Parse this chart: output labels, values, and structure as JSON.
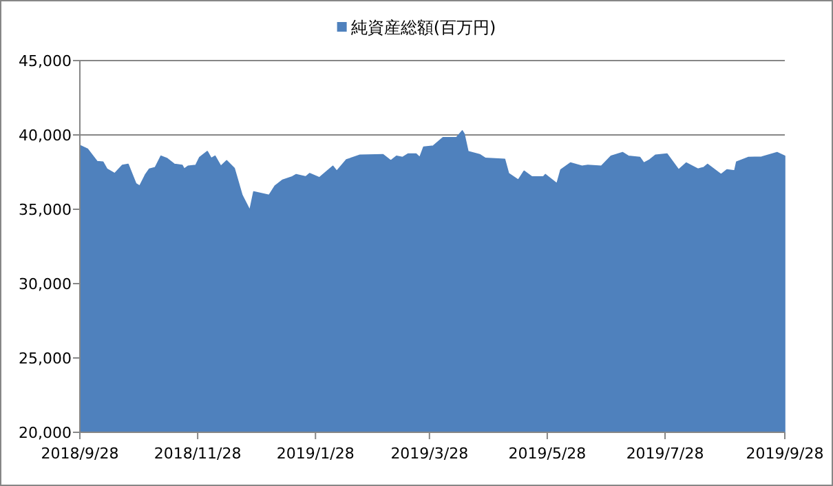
{
  "chart_data": {
    "type": "area",
    "legend": "top",
    "grid": "y",
    "xlim": [
      "2018-09-28",
      "2019-09-28"
    ],
    "xticks": [
      {
        "value": "2018-09-28",
        "label": "2018/9/28"
      },
      {
        "value": "2018-11-28",
        "label": "2018/11/28"
      },
      {
        "value": "2019-01-28",
        "label": "2019/1/28"
      },
      {
        "value": "2019-03-28",
        "label": "2019/3/28"
      },
      {
        "value": "2019-05-28",
        "label": "2019/5/28"
      },
      {
        "value": "2019-07-28",
        "label": "2019/7/28"
      },
      {
        "value": "2019-09-28",
        "label": "2019/9/28"
      }
    ],
    "ylim": [
      20000,
      45000
    ],
    "yticks": [
      {
        "value": 20000,
        "label": "20,000"
      },
      {
        "value": 25000,
        "label": "25,000"
      },
      {
        "value": 30000,
        "label": "30,000"
      },
      {
        "value": 35000,
        "label": "35,000"
      },
      {
        "value": 40000,
        "label": "40,000"
      },
      {
        "value": 45000,
        "label": "45,000"
      }
    ],
    "x": [
      "2018-09-28",
      "2018-10-02",
      "2018-10-07",
      "2018-10-10",
      "2018-10-12",
      "2018-10-16",
      "2018-10-20",
      "2018-10-23",
      "2018-10-27",
      "2018-10-29",
      "2018-11-01",
      "2018-11-03",
      "2018-11-06",
      "2018-11-09",
      "2018-11-12",
      "2018-11-16",
      "2018-11-20",
      "2018-11-21",
      "2018-11-23",
      "2018-11-27",
      "2018-11-29",
      "2018-12-03",
      "2018-12-05",
      "2018-12-07",
      "2018-12-10",
      "2018-12-13",
      "2018-12-17",
      "2018-12-21",
      "2018-12-25",
      "2018-12-27",
      "2019-01-04",
      "2019-01-07",
      "2019-01-11",
      "2019-01-16",
      "2019-01-18",
      "2019-01-23",
      "2019-01-25",
      "2019-01-30",
      "2019-02-06",
      "2019-02-08",
      "2019-02-13",
      "2019-02-20",
      "2019-03-04",
      "2019-03-08",
      "2019-03-11",
      "2019-03-14",
      "2019-03-17",
      "2019-03-21",
      "2019-03-23",
      "2019-03-25",
      "2019-03-30",
      "2019-04-04",
      "2019-04-09",
      "2019-04-11",
      "2019-04-14",
      "2019-04-15",
      "2019-04-17",
      "2019-04-23",
      "2019-04-26",
      "2019-05-06",
      "2019-05-08",
      "2019-05-13",
      "2019-05-16",
      "2019-05-20",
      "2019-05-26",
      "2019-05-27",
      "2019-06-02",
      "2019-06-04",
      "2019-06-09",
      "2019-06-15",
      "2019-06-18",
      "2019-06-25",
      "2019-06-30",
      "2019-07-06",
      "2019-07-09",
      "2019-07-15",
      "2019-07-17",
      "2019-07-20",
      "2019-07-23",
      "2019-07-29",
      "2019-08-04",
      "2019-08-08",
      "2019-08-14",
      "2019-08-17",
      "2019-08-19",
      "2019-08-26",
      "2019-08-29",
      "2019-09-02",
      "2019-09-03",
      "2019-09-09",
      "2019-09-16",
      "2019-09-24",
      "2019-09-28"
    ],
    "series": [
      {
        "name": "純資産総額(百万円)",
        "color": "#4f81bd",
        "values": [
          39290,
          39050,
          38210,
          38180,
          37710,
          37410,
          37960,
          38030,
          36730,
          36570,
          37340,
          37710,
          37810,
          38580,
          38430,
          38030,
          37960,
          37710,
          37900,
          37960,
          38490,
          38890,
          38430,
          38580,
          37900,
          38270,
          37750,
          35950,
          34940,
          36180,
          35950,
          36570,
          36970,
          37190,
          37340,
          37190,
          37410,
          37130,
          37900,
          37570,
          38330,
          38640,
          38680,
          38270,
          38580,
          38490,
          38730,
          38730,
          38490,
          39190,
          39260,
          39820,
          39820,
          39820,
          40280,
          40070,
          38890,
          38680,
          38430,
          38360,
          37410,
          36970,
          37570,
          37190,
          37190,
          37340,
          36730,
          37660,
          38120,
          37900,
          37960,
          37900,
          38580,
          38820,
          38580,
          38490,
          38120,
          38330,
          38640,
          38730,
          37660,
          38120,
          37710,
          37810,
          38030,
          37340,
          37660,
          37590,
          38180,
          38490,
          38520,
          38820,
          38580
        ]
      }
    ]
  }
}
